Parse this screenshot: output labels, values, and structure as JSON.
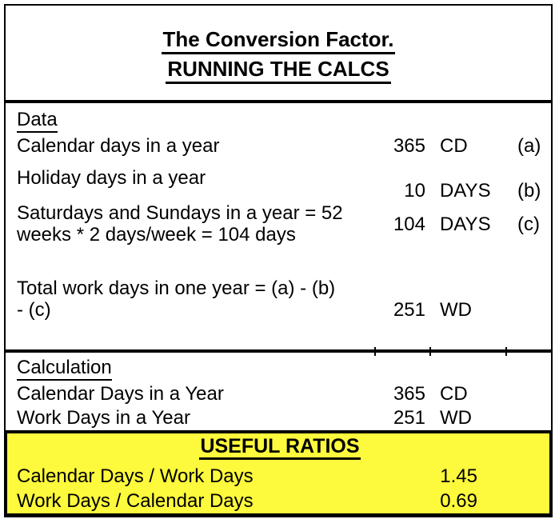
{
  "colors": {
    "highlight": "#FDF93C",
    "border": "#000000",
    "text": "#000000",
    "background": "#FFFFFF"
  },
  "title": {
    "line1": "The Conversion Factor.",
    "line2": "RUNNING THE CALCS"
  },
  "data_section": {
    "heading": "Data",
    "rows": [
      {
        "label": "Calendar days in a year",
        "value": "365",
        "unit": "CD",
        "ref": "(a)"
      },
      {
        "label": "Holiday days in a year",
        "value": "10",
        "unit": "DAYS",
        "ref": "(b)"
      },
      {
        "label": "Saturdays and Sundays in a year = 52\nweeks * 2 days/week = 104 days",
        "value": "104",
        "unit": "DAYS",
        "ref": "(c)"
      },
      {
        "label": "Total work days in one year = (a) - (b)\n- (c)",
        "value": "251",
        "unit": "WD",
        "ref": ""
      }
    ]
  },
  "calculation_section": {
    "heading": "Calculation",
    "rows": [
      {
        "label": "Calendar Days in a Year",
        "value": "365",
        "unit": "CD"
      },
      {
        "label": "Work Days in a Year",
        "value": "251",
        "unit": "WD"
      }
    ]
  },
  "ratios_section": {
    "heading": "USEFUL RATIOS",
    "rows": [
      {
        "label": "Calendar Days / Work Days",
        "value": "1.45"
      },
      {
        "label": "Work Days / Calendar Days",
        "value": "0.69"
      }
    ]
  }
}
